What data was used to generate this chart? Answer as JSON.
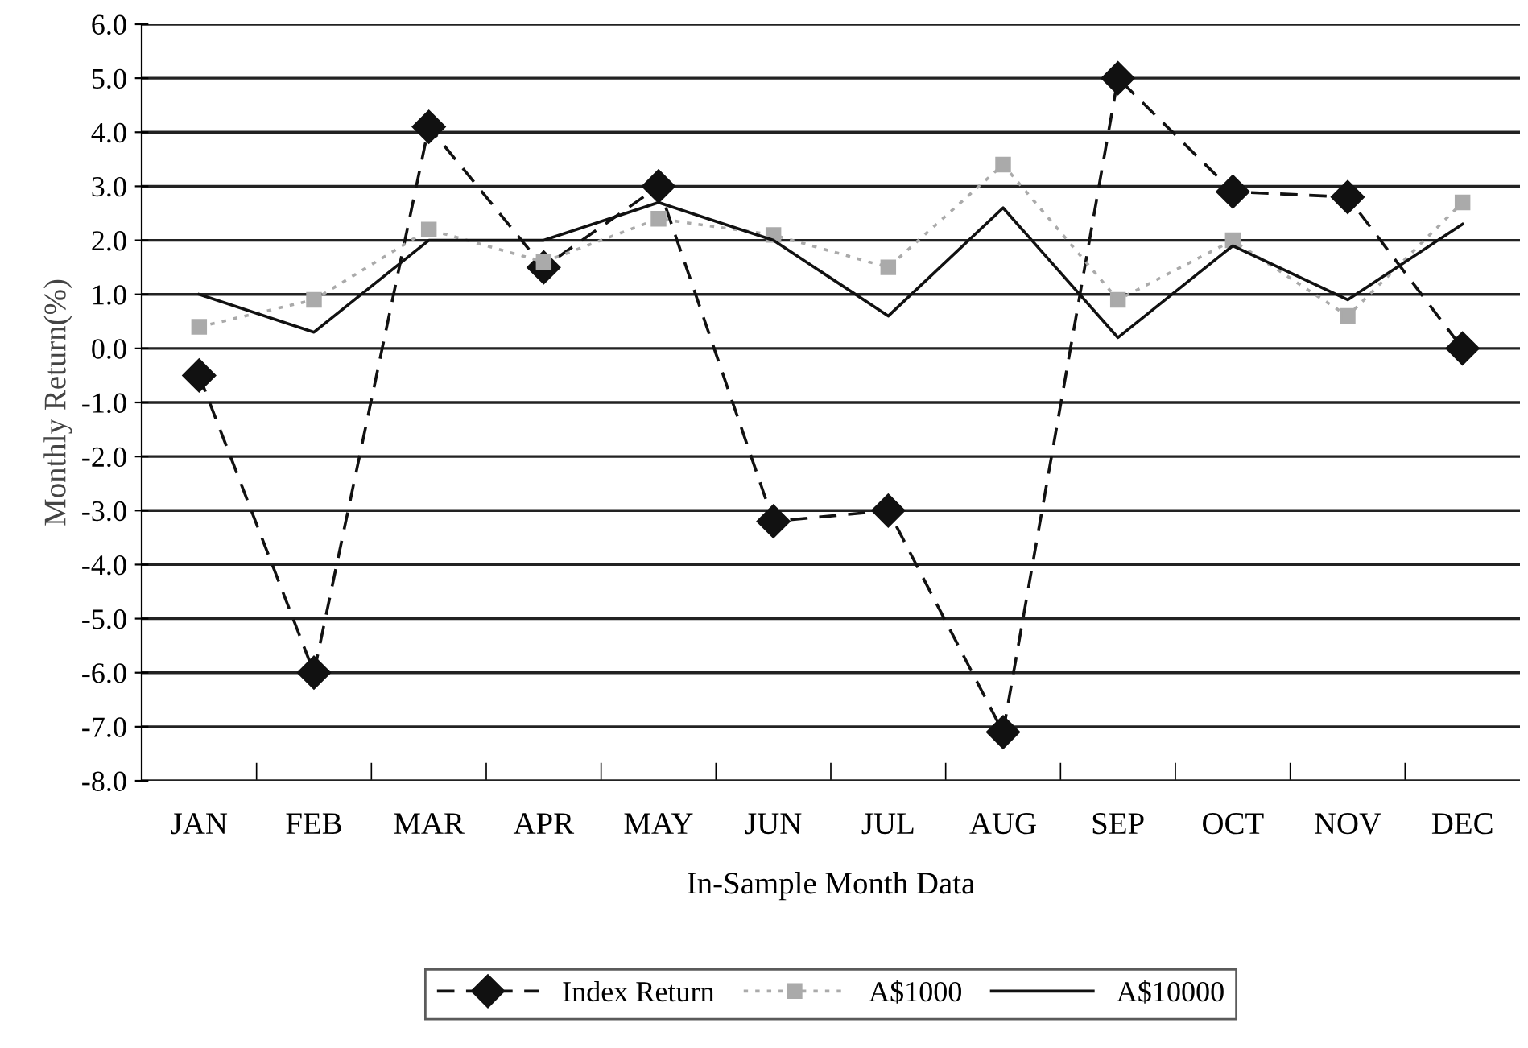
{
  "chart_data": {
    "type": "line",
    "xlabel": "In-Sample Month Data",
    "ylabel": "Monthly Return(%)",
    "categories": [
      "JAN",
      "FEB",
      "MAR",
      "APR",
      "MAY",
      "JUN",
      "JUL",
      "AUG",
      "SEP",
      "OCT",
      "NOV",
      "DEC"
    ],
    "series": [
      {
        "name": "Index Return",
        "color": "#111111",
        "marker": "diamond",
        "line_style": "dashed",
        "values": [
          -0.5,
          -6.0,
          4.1,
          1.5,
          3.0,
          -3.2,
          -3.0,
          -7.1,
          5.0,
          2.9,
          2.8,
          0.0
        ]
      },
      {
        "name": "A$1000",
        "color": "#aaaaaa",
        "marker": "square",
        "line_style": "dotted",
        "values": [
          0.4,
          0.9,
          2.2,
          1.6,
          2.4,
          2.1,
          1.5,
          3.4,
          0.9,
          2.0,
          0.6,
          2.7
        ]
      },
      {
        "name": "A$10000",
        "color": "#111111",
        "marker": "none",
        "line_style": "solid",
        "values": [
          1.0,
          0.3,
          2.0,
          2.0,
          2.7,
          2.0,
          0.6,
          2.6,
          0.2,
          1.9,
          0.9,
          2.3
        ]
      }
    ],
    "ylim": [
      -8.0,
      6.0
    ],
    "yticks": [
      {
        "value": -8,
        "label": "-8.0"
      },
      {
        "value": -7,
        "label": "-7.0"
      },
      {
        "value": -6,
        "label": "-6.0"
      },
      {
        "value": -5,
        "label": "-5.0"
      },
      {
        "value": -4,
        "label": "-4.0"
      },
      {
        "value": -3,
        "label": "-3.0"
      },
      {
        "value": -2,
        "label": "-2.0"
      },
      {
        "value": -1,
        "label": "-1.0"
      },
      {
        "value": 0,
        "label": "0.0"
      },
      {
        "value": 1,
        "label": "1.0"
      },
      {
        "value": 2,
        "label": "2.0"
      },
      {
        "value": 3,
        "label": "3.0"
      },
      {
        "value": 4,
        "label": "4.0"
      },
      {
        "value": 5,
        "label": "5.0"
      },
      {
        "value": 6,
        "label": "6.0"
      }
    ],
    "grid": "y",
    "legend": "bottom"
  }
}
